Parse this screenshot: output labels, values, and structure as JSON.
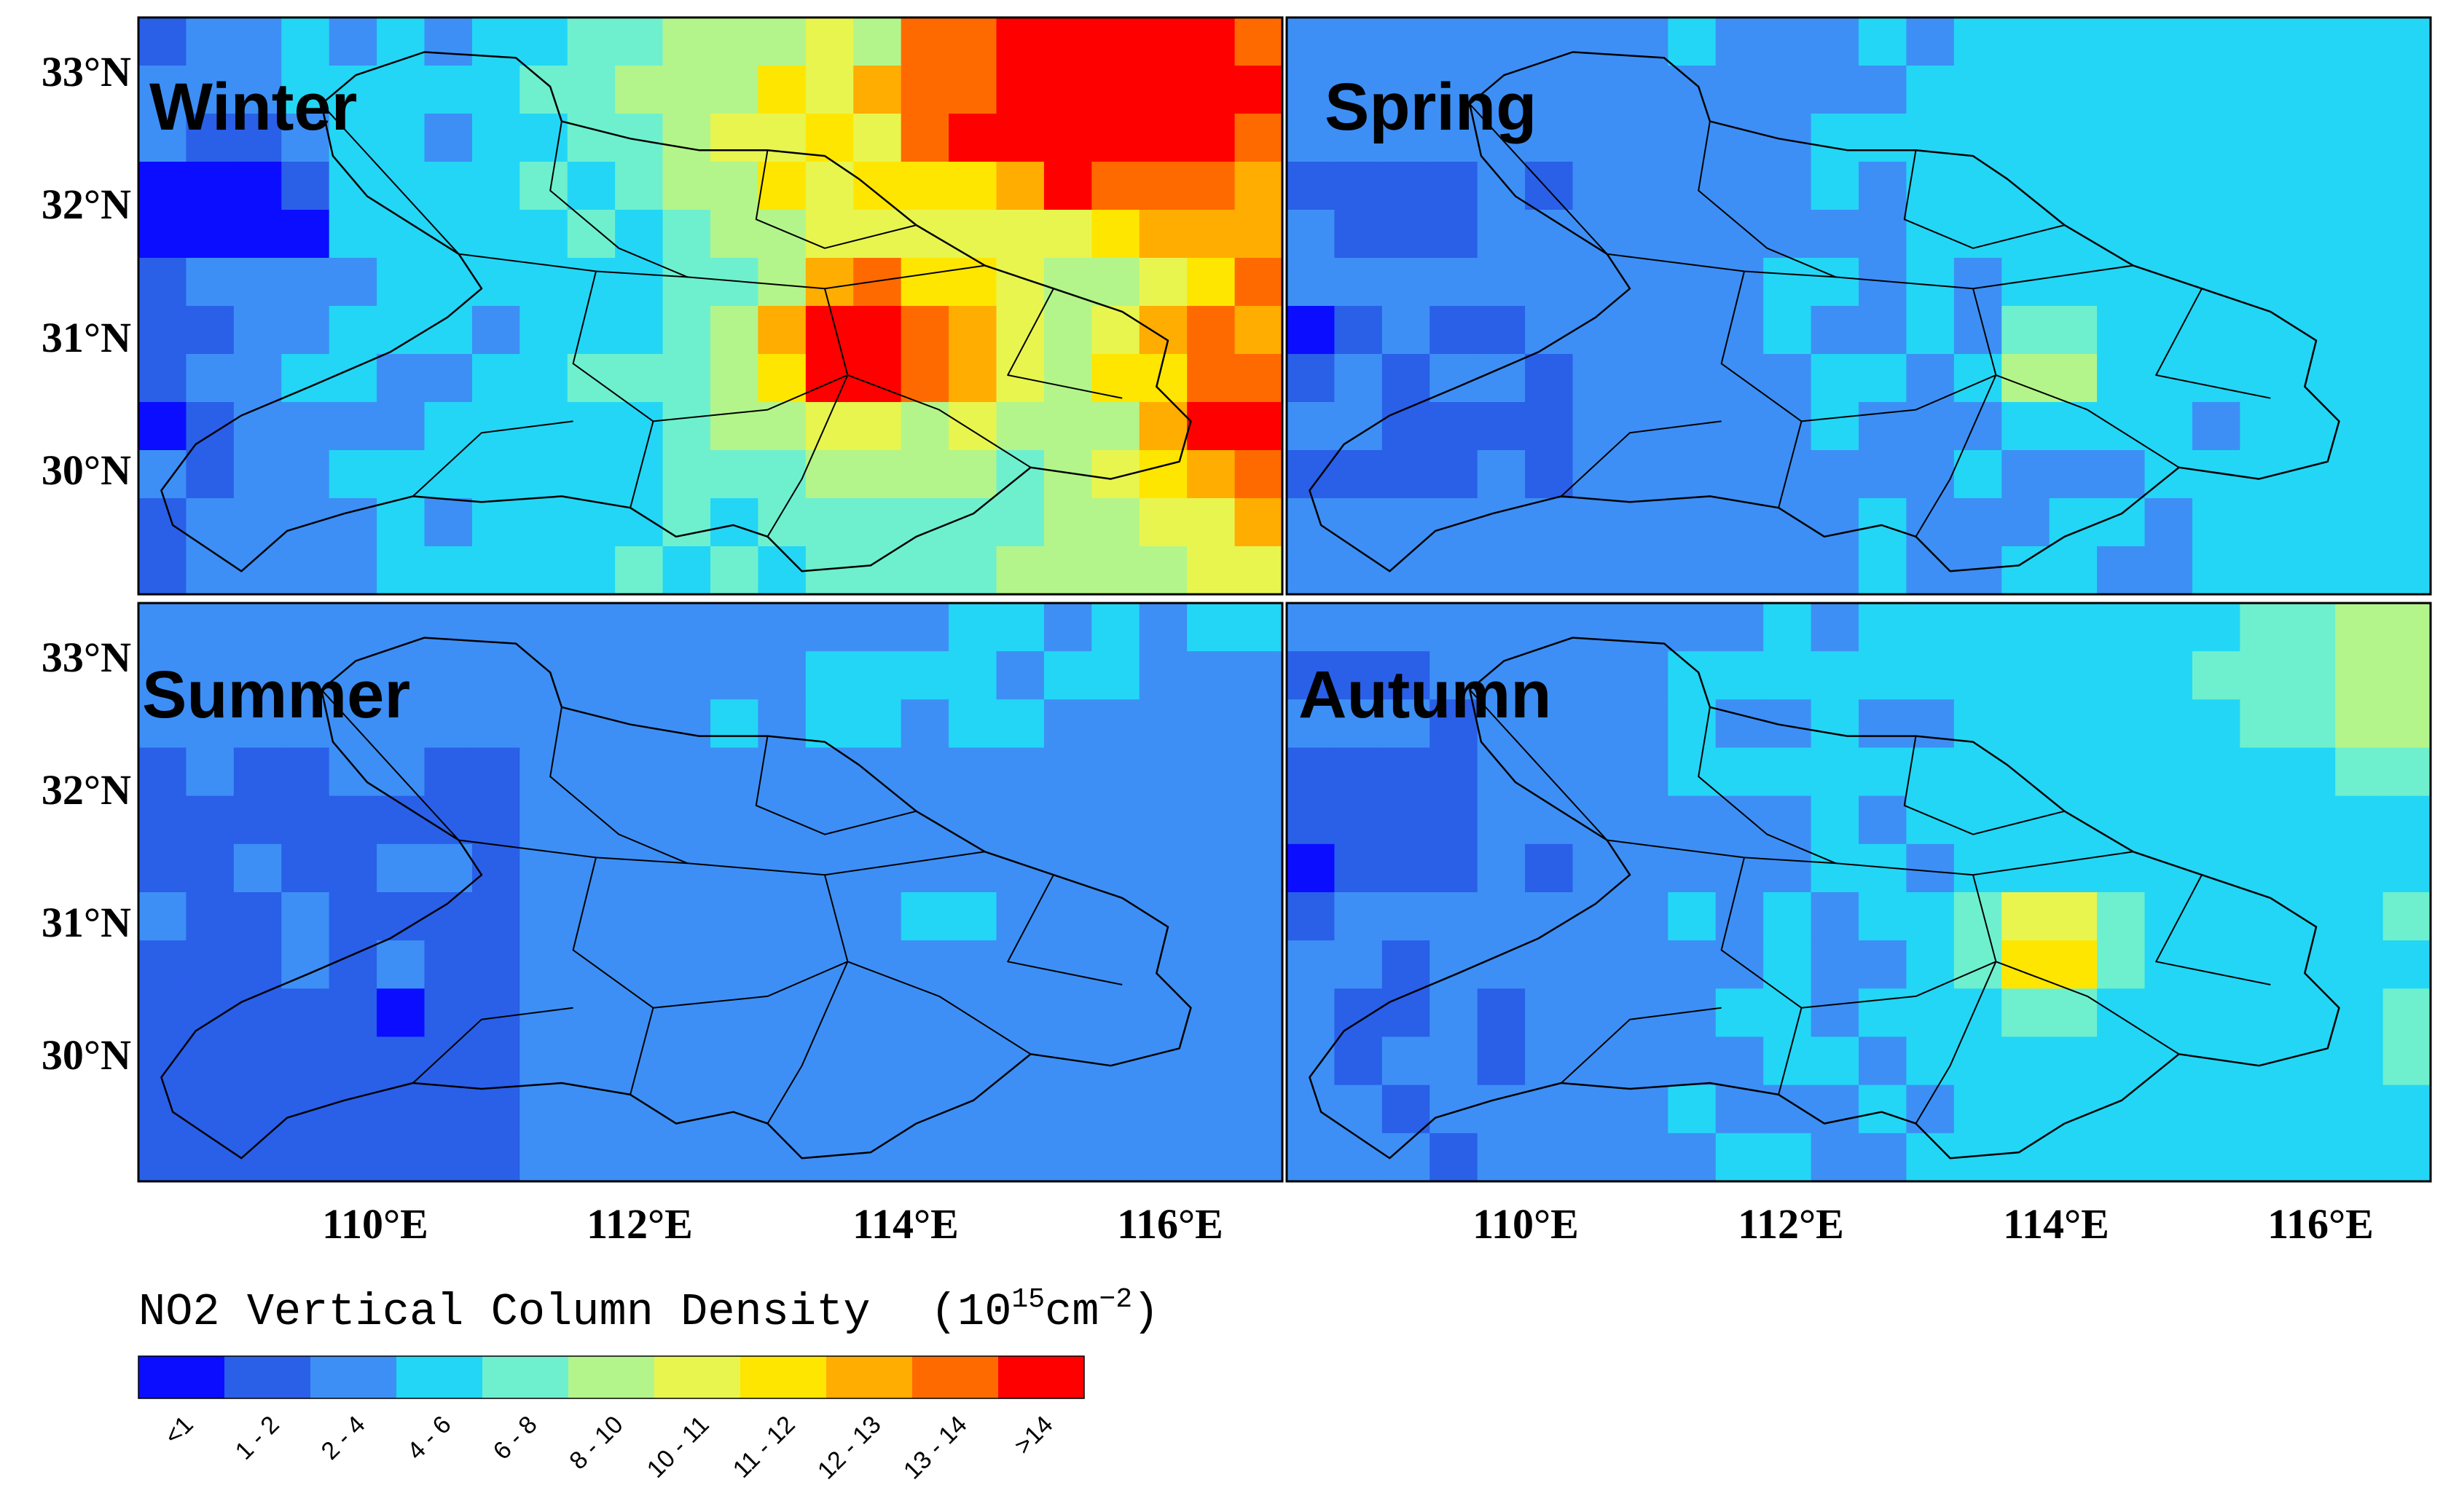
{
  "panels": [
    {
      "title": "Winter",
      "pattern": "winter"
    },
    {
      "title": "Spring",
      "pattern": "spring"
    },
    {
      "title": "Summer",
      "pattern": "summer"
    },
    {
      "title": "Autumn",
      "pattern": "autumn"
    }
  ],
  "lat_labels": [
    "33°N",
    "32°N",
    "31°N",
    "30°N"
  ],
  "lon_labels": [
    "110°E",
    "112°E",
    "114°E",
    "116°E"
  ],
  "legend": {
    "title": "NO2 Vertical Column Density",
    "unit_base": "(10",
    "unit_exp": "15",
    "unit_tail": "cm",
    "unit_exp2": "−2",
    "unit_close": ")",
    "classes": [
      "<1",
      "1 - 2",
      "2 - 4",
      "4 - 6",
      "6 - 8",
      "8 - 10",
      "10 - 11",
      "11 - 12",
      "12 - 13",
      "13 - 14",
      ">14"
    ],
    "colors": [
      "#0a0dff",
      "#2a5fe8",
      "#3d8ff5",
      "#23d6f5",
      "#6ef0cf",
      "#b3f58a",
      "#e8f54f",
      "#ffe600",
      "#ffad00",
      "#ff6a00",
      "#ff0000"
    ]
  }
}
